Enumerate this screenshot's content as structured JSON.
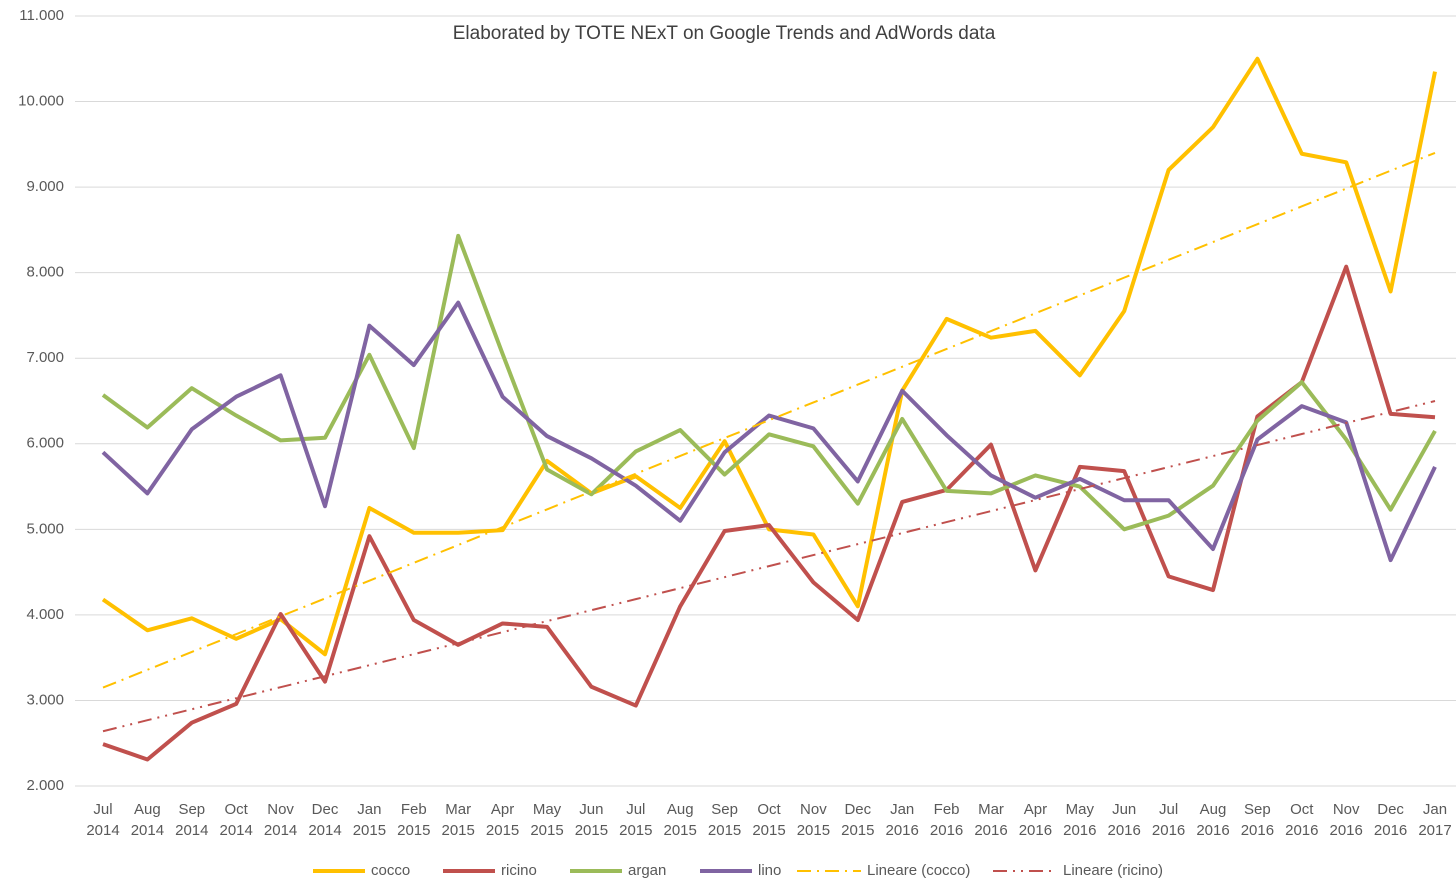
{
  "chart_data": {
    "type": "line",
    "title": "Elaborated by TOTE NExT on Google Trends and AdWords data",
    "categories": [
      "Jul 2014",
      "Aug 2014",
      "Sep 2014",
      "Oct 2014",
      "Nov 2014",
      "Dec 2014",
      "Jan 2015",
      "Feb 2015",
      "Mar 2015",
      "Apr 2015",
      "May 2015",
      "Jun 2015",
      "Jul 2015",
      "Aug 2015",
      "Sep 2015",
      "Oct 2015",
      "Nov 2015",
      "Dec 2015",
      "Jan 2016",
      "Feb 2016",
      "Mar 2016",
      "Apr 2016",
      "May 2016",
      "Jun 2016",
      "Jul 2016",
      "Aug 2016",
      "Sep 2016",
      "Oct 2016",
      "Nov 2016",
      "Dec 2016",
      "Jan 2017"
    ],
    "series": [
      {
        "name": "cocco",
        "color": "#FFC000",
        "dash": "solid",
        "values": [
          4180,
          3820,
          3960,
          3720,
          3950,
          3540,
          5250,
          4960,
          4960,
          4990,
          5800,
          5420,
          5620,
          5250,
          6030,
          5000,
          4940,
          4100,
          6620,
          7460,
          7240,
          7320,
          6800,
          7550,
          9200,
          9700,
          10500,
          9390,
          9290,
          7780,
          10350
        ]
      },
      {
        "name": "ricino",
        "color": "#C0504D",
        "dash": "solid",
        "values": [
          2490,
          2310,
          2740,
          2960,
          4010,
          3220,
          4920,
          3940,
          3650,
          3900,
          3860,
          3160,
          2940,
          4100,
          4980,
          5050,
          4380,
          3940,
          5320,
          5460,
          5990,
          4520,
          5730,
          5680,
          4450,
          4290,
          6320,
          6720,
          8070,
          6350,
          6310
        ]
      },
      {
        "name": "argan",
        "color": "#9BBB59",
        "dash": "solid",
        "values": [
          6570,
          6190,
          6650,
          6330,
          6040,
          6070,
          7040,
          5950,
          8430,
          7050,
          5700,
          5410,
          5910,
          6160,
          5640,
          6110,
          5970,
          5300,
          6290,
          5450,
          5420,
          5630,
          5500,
          5000,
          5160,
          5510,
          6270,
          6720,
          6050,
          5230,
          6150
        ]
      },
      {
        "name": "lino",
        "color": "#8064A2",
        "dash": "solid",
        "values": [
          5900,
          5420,
          6170,
          6550,
          6800,
          5270,
          7380,
          6920,
          7650,
          6550,
          6090,
          5830,
          5510,
          5100,
          5900,
          6330,
          6180,
          5560,
          6620,
          6100,
          5630,
          5370,
          5590,
          5340,
          5340,
          4770,
          6050,
          6440,
          6250,
          4640,
          5730
        ]
      },
      {
        "name": "Lineare (cocco)",
        "color": "#FFC000",
        "dash": "dash-dot",
        "values": [
          3150,
          3358,
          3567,
          3775,
          3983,
          4192,
          4400,
          4608,
          4817,
          5025,
          5233,
          5442,
          5650,
          5858,
          6067,
          6275,
          6483,
          6692,
          6900,
          7108,
          7317,
          7525,
          7733,
          7942,
          8150,
          8358,
          8567,
          8775,
          8983,
          9192,
          9400
        ]
      },
      {
        "name": "Lineare (ricino)",
        "color": "#C0504D",
        "dash": "dash-dot-dot",
        "values": [
          2640,
          2769,
          2897,
          3026,
          3155,
          3283,
          3412,
          3541,
          3669,
          3798,
          3927,
          4055,
          4184,
          4313,
          4441,
          4570,
          4699,
          4827,
          4956,
          5085,
          5213,
          5342,
          5471,
          5599,
          5728,
          5857,
          5985,
          6114,
          6243,
          6371,
          6500
        ]
      }
    ],
    "ylim": [
      2000,
      11000
    ],
    "yticks": [
      {
        "value": 2000,
        "label": "2.000"
      },
      {
        "value": 3000,
        "label": "3.000"
      },
      {
        "value": 4000,
        "label": "4.000"
      },
      {
        "value": 5000,
        "label": "5.000"
      },
      {
        "value": 6000,
        "label": "6.000"
      },
      {
        "value": 7000,
        "label": "7.000"
      },
      {
        "value": 8000,
        "label": "8.000"
      },
      {
        "value": 9000,
        "label": "9.000"
      },
      {
        "value": 10000,
        "label": "10.000"
      },
      {
        "value": 11000,
        "label": "11.000"
      }
    ],
    "grid": true,
    "legend": "bottom"
  }
}
